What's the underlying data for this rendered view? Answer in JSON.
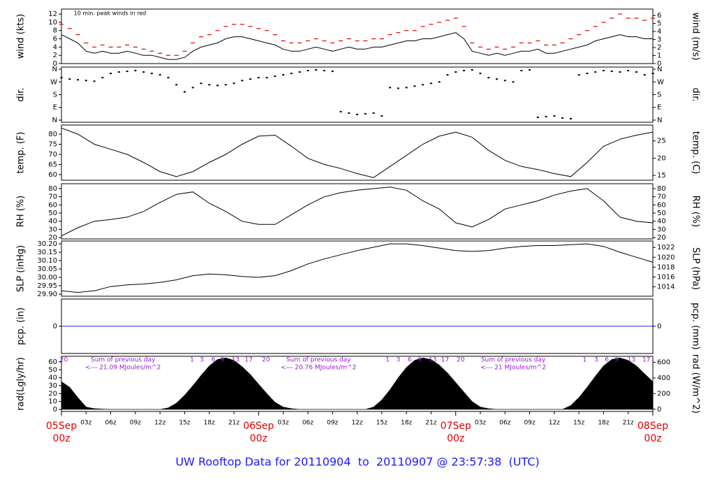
{
  "chart_data": [
    {
      "type": "line",
      "ylabel": "wind (kts)",
      "y2label": "wind (m/s)",
      "ylim": [
        0,
        13.2
      ],
      "yticks": [
        0,
        2,
        4,
        6,
        8,
        10,
        12
      ],
      "y2lim": [
        0,
        6.8
      ],
      "y2ticks": [
        0,
        1,
        2,
        3,
        4,
        5,
        6
      ],
      "annotations": [
        {
          "x": 1.5,
          "text": "10 min. peak winds in red",
          "color": "#e00000"
        }
      ],
      "x": [
        0,
        1,
        2,
        3,
        4,
        5,
        6,
        7,
        8,
        9,
        10,
        11,
        12,
        13,
        14,
        15,
        16,
        17,
        18,
        19,
        20,
        21,
        22,
        23,
        24,
        25,
        26,
        27,
        28,
        29,
        30,
        31,
        32,
        33,
        34,
        35,
        36,
        37,
        38,
        39,
        40,
        41,
        42,
        43,
        44,
        45,
        46,
        47,
        48,
        49,
        50,
        51,
        52,
        53,
        54,
        55,
        56,
        57,
        58,
        59,
        60,
        61,
        62,
        63,
        64,
        65,
        66,
        67,
        68,
        69,
        70,
        71,
        72
      ],
      "series": [
        {
          "color": "#000000",
          "marker": "line",
          "values": [
            7,
            6,
            5,
            3,
            2.5,
            3,
            2.5,
            2.5,
            3,
            2.5,
            2,
            2,
            1.5,
            1,
            1,
            1.5,
            3,
            4,
            4.5,
            5,
            6,
            6.5,
            6.5,
            6,
            5.5,
            5,
            4.5,
            3.5,
            3,
            3,
            3.5,
            4,
            3.5,
            3,
            3.5,
            4,
            3.5,
            3.5,
            4,
            4,
            4.5,
            5,
            5.5,
            5.5,
            6,
            6,
            6.5,
            7,
            7.5,
            6,
            3,
            2.5,
            2,
            2.5,
            2,
            2.5,
            3,
            3,
            3.5,
            2.5,
            2.5,
            3,
            3.5,
            4,
            4.5,
            5.5,
            6,
            6.5,
            7,
            6.5,
            6.5,
            6,
            6
          ]
        },
        {
          "color": "#e00000",
          "marker": "dash",
          "values": [
            9.5,
            8.5,
            7,
            5,
            4,
            4.5,
            4,
            4,
            4.5,
            4,
            3.5,
            3,
            2.5,
            2,
            2,
            3,
            5,
            6.5,
            7,
            8,
            9,
            9.5,
            9.5,
            9,
            8.5,
            8,
            7,
            5.5,
            5,
            5,
            5.5,
            6,
            5.5,
            5,
            5.5,
            6,
            5.5,
            5.5,
            6,
            6,
            7,
            7.5,
            8,
            8,
            9,
            9.5,
            10,
            10.5,
            11,
            9,
            5,
            4,
            3.5,
            4,
            3.5,
            4,
            5,
            5,
            5.5,
            4.5,
            4.5,
            5,
            6,
            7,
            8,
            9,
            10,
            11,
            12,
            11,
            11,
            10.5,
            11
          ]
        }
      ]
    },
    {
      "type": "scatter",
      "ylabel": "dir.",
      "y2label": "dir.",
      "ylim": [
        -15,
        375
      ],
      "yticks": [
        {
          "value": 360,
          "label": "N"
        },
        {
          "value": 270,
          "label": "W"
        },
        {
          "value": 180,
          "label": "S"
        },
        {
          "value": 90,
          "label": "E"
        },
        {
          "value": 0,
          "label": "N"
        }
      ],
      "y2lim": [
        -15,
        375
      ],
      "y2ticks": [
        {
          "value": 360,
          "label": "N"
        },
        {
          "value": 270,
          "label": "W"
        },
        {
          "value": 180,
          "label": "S"
        },
        {
          "value": 90,
          "label": "E"
        },
        {
          "value": 0,
          "label": "N"
        }
      ],
      "x": [
        0,
        1,
        2,
        3,
        4,
        5,
        6,
        7,
        8,
        9,
        10,
        11,
        12,
        13,
        14,
        15,
        16,
        17,
        18,
        19,
        20,
        21,
        22,
        23,
        24,
        25,
        26,
        27,
        28,
        29,
        30,
        31,
        32,
        33,
        34,
        35,
        36,
        37,
        38,
        39,
        40,
        41,
        42,
        43,
        44,
        45,
        46,
        47,
        48,
        49,
        50,
        51,
        52,
        53,
        54,
        55,
        56,
        57,
        58,
        59,
        60,
        61,
        62,
        63,
        64,
        65,
        66,
        67,
        68,
        69,
        70,
        71,
        72
      ],
      "series": [
        {
          "color": "#000000",
          "values": [
            300,
            290,
            285,
            280,
            275,
            300,
            330,
            340,
            345,
            350,
            340,
            330,
            320,
            300,
            250,
            200,
            230,
            260,
            250,
            245,
            250,
            260,
            280,
            290,
            300,
            300,
            310,
            320,
            330,
            340,
            350,
            355,
            350,
            345,
            60,
            50,
            40,
            45,
            50,
            30,
            230,
            225,
            230,
            240,
            250,
            260,
            270,
            320,
            340,
            350,
            355,
            330,
            300,
            290,
            280,
            270,
            350,
            355,
            20,
            25,
            30,
            15,
            10,
            320,
            330,
            340,
            350,
            345,
            340,
            350,
            340,
            320,
            330
          ]
        }
      ]
    },
    {
      "type": "line",
      "ylabel": "temp. (F)",
      "y2label": "temp. (C)",
      "ylim": [
        57.2,
        84.5
      ],
      "yticks": [
        60,
        65,
        70,
        75,
        80
      ],
      "y2lim": [
        13.6,
        29.6
      ],
      "y2ticks": [
        15,
        20,
        25
      ],
      "x": [
        0,
        2,
        4,
        6,
        8,
        10,
        12,
        14,
        16,
        18,
        20,
        22,
        24,
        26,
        28,
        30,
        32,
        34,
        36,
        38,
        40,
        42,
        44,
        46,
        48,
        50,
        52,
        54,
        56,
        58,
        60,
        62,
        64,
        66,
        68,
        70,
        72
      ],
      "series": [
        {
          "color": "#000000",
          "marker": "line",
          "values": [
            83,
            80,
            75,
            72.5,
            70,
            66,
            61.5,
            59,
            61.5,
            66,
            70,
            75,
            79,
            79.5,
            74,
            68,
            65,
            63,
            60.5,
            58.5,
            64,
            69.5,
            75,
            79,
            81,
            78.5,
            72,
            67,
            64,
            62.5,
            60.5,
            59,
            66,
            74,
            77.5,
            79.5,
            81
          ]
        }
      ]
    },
    {
      "type": "line",
      "ylabel": "RH (%)",
      "y2label": "RH (%)",
      "ylim": [
        18.3,
        86
      ],
      "yticks": [
        20,
        30,
        40,
        50,
        60,
        70,
        80
      ],
      "y2lim": [
        18.3,
        86
      ],
      "y2ticks": [
        20,
        30,
        40,
        50,
        60,
        70,
        80
      ],
      "x": [
        0,
        2,
        4,
        6,
        8,
        10,
        12,
        14,
        16,
        18,
        20,
        22,
        24,
        26,
        28,
        30,
        32,
        34,
        36,
        38,
        40,
        42,
        44,
        46,
        48,
        50,
        52,
        54,
        56,
        58,
        60,
        62,
        64,
        66,
        68,
        70,
        72
      ],
      "series": [
        {
          "color": "#000000",
          "marker": "line",
          "values": [
            22,
            32,
            40,
            42,
            45,
            52,
            63,
            73,
            76,
            62,
            52,
            40,
            36,
            36,
            48,
            60,
            70,
            75,
            78,
            80,
            82,
            78,
            65,
            55,
            38,
            33,
            42,
            55,
            60,
            65,
            72,
            77,
            80,
            65,
            45,
            40,
            38
          ]
        }
      ]
    },
    {
      "type": "line",
      "ylabel": "SLP (inHg)",
      "y2label": "SLP (hPa)",
      "ylim": [
        29.8875,
        30.217
      ],
      "yticks": [
        {
          "value": 30.2,
          "label": "30.20"
        },
        30.15,
        {
          "value": 30.1,
          "label": "30.10"
        },
        30.05,
        {
          "value": 30,
          "label": "30.00"
        },
        29.95,
        {
          "value": 29.9,
          "label": "29.90"
        }
      ],
      "y2lim": [
        1012.1,
        1023.3
      ],
      "y2ticks": [
        1014,
        1016,
        1018,
        1020,
        1022
      ],
      "x": [
        0,
        2,
        4,
        6,
        8,
        10,
        12,
        14,
        16,
        18,
        20,
        22,
        24,
        26,
        28,
        30,
        32,
        34,
        36,
        38,
        40,
        42,
        44,
        46,
        48,
        50,
        52,
        54,
        56,
        58,
        60,
        62,
        64,
        66,
        68,
        70,
        72
      ],
      "series": [
        {
          "color": "#000000",
          "marker": "line",
          "values": [
            29.92,
            29.91,
            29.92,
            29.945,
            29.955,
            29.96,
            29.97,
            29.985,
            30.01,
            30.02,
            30.015,
            30.005,
            30,
            30.01,
            30.04,
            30.08,
            30.11,
            30.135,
            30.16,
            30.18,
            30.2,
            30.2,
            30.19,
            30.175,
            30.16,
            30.155,
            30.16,
            30.175,
            30.185,
            30.19,
            30.19,
            30.195,
            30.2,
            30.185,
            30.15,
            30.12,
            30.09
          ]
        }
      ]
    },
    {
      "type": "line",
      "ylabel": "pcp. (in)",
      "y2label": "pcp. (mm)",
      "ylim": [
        -0.5,
        0.5
      ],
      "yticks": [
        0
      ],
      "y2lim": [
        -0.5,
        0.5
      ],
      "y2ticks": [
        0
      ],
      "x": [
        0,
        72
      ],
      "series": [
        {
          "color": "#2020d0",
          "marker": "line",
          "values": [
            0,
            0
          ]
        }
      ]
    },
    {
      "type": "area",
      "ylabel": "rad(Lgly/hr)",
      "y2label": "rad (W/m^2)",
      "ylim": [
        -2.6,
        67
      ],
      "yticks": [
        0,
        10,
        20,
        30,
        40,
        50,
        60
      ],
      "y2lim": [
        -29,
        677
      ],
      "y2ticks": [
        0,
        200,
        400,
        600
      ],
      "hour_ticks": [
        {
          "value": 0.3,
          "label": "20"
        },
        {
          "value": 15.9,
          "label": "1"
        },
        {
          "value": 17.1,
          "label": "3"
        },
        {
          "value": 18.5,
          "label": "6"
        },
        {
          "value": 19.6,
          "label": "9"
        },
        {
          "value": 21.2,
          "label": "13"
        },
        {
          "value": 22.8,
          "label": "17"
        },
        {
          "value": 24.9,
          "label": "20"
        },
        {
          "value": 39.7,
          "label": "1"
        },
        {
          "value": 41,
          "label": "3"
        },
        {
          "value": 42.4,
          "label": "6"
        },
        {
          "value": 43.6,
          "label": "9"
        },
        {
          "value": 45.2,
          "label": "13"
        },
        {
          "value": 46.7,
          "label": "17"
        },
        {
          "value": 48.6,
          "label": "20"
        },
        {
          "value": 63.7,
          "label": "1"
        },
        {
          "value": 65.1,
          "label": "3"
        },
        {
          "value": 66.4,
          "label": "6"
        },
        {
          "value": 67.6,
          "label": "9"
        },
        {
          "value": 69.4,
          "label": "13"
        },
        {
          "value": 71.2,
          "label": "17"
        }
      ],
      "notes": [
        {
          "x": 7.5,
          "lines": [
            "Sum of previous day",
            "<--- 21.09 MJoules/m^2"
          ]
        },
        {
          "x": 31.3,
          "lines": [
            "Sum of previous day",
            "<--- 20.76 MJoules/m^2"
          ]
        },
        {
          "x": 55,
          "lines": [
            "Sum of previous day",
            "<--- 21 MJoules/m^2"
          ]
        }
      ],
      "x": [
        0,
        1,
        2,
        3,
        4,
        5,
        6,
        7,
        8,
        9,
        10,
        11,
        12,
        13,
        14,
        15,
        16,
        17,
        18,
        19,
        20,
        21,
        22,
        23,
        24,
        25,
        26,
        27,
        28,
        29,
        30,
        31,
        32,
        33,
        34,
        35,
        36,
        37,
        38,
        39,
        40,
        41,
        42,
        43,
        44,
        45,
        46,
        47,
        48,
        49,
        50,
        51,
        52,
        53,
        54,
        55,
        56,
        57,
        58,
        59,
        60,
        61,
        62,
        63,
        64,
        65,
        66,
        67,
        68,
        69,
        70,
        71,
        72
      ],
      "series": [
        {
          "color": "#000000",
          "values": [
            35,
            28,
            15,
            3,
            1,
            0.5,
            0,
            0,
            0,
            0,
            0,
            0,
            0,
            2,
            8,
            18,
            30,
            43,
            55,
            63,
            65,
            62,
            54,
            44,
            32,
            20,
            9,
            3,
            1,
            0,
            0,
            0,
            0,
            0,
            0,
            0,
            0,
            0,
            3,
            12,
            25,
            40,
            53,
            62,
            65,
            63,
            56,
            46,
            34,
            22,
            10,
            3,
            1,
            0,
            0,
            0,
            0,
            0,
            0,
            0,
            0,
            0,
            5,
            15,
            28,
            42,
            55,
            63,
            65,
            62,
            55,
            45,
            35
          ]
        }
      ]
    }
  ],
  "x_axis": {
    "xlim": [
      0,
      72
    ],
    "xticks": [
      {
        "value": 3,
        "label": "03z"
      },
      {
        "value": 6,
        "label": "06z"
      },
      {
        "value": 9,
        "label": "09z"
      },
      {
        "value": 12,
        "label": "12z"
      },
      {
        "value": 15,
        "label": "15z"
      },
      {
        "value": 18,
        "label": "18z"
      },
      {
        "value": 21,
        "label": "21z"
      },
      {
        "value": 27,
        "label": "03z"
      },
      {
        "value": 30,
        "label": "06z"
      },
      {
        "value": 33,
        "label": "09z"
      },
      {
        "value": 36,
        "label": "12z"
      },
      {
        "value": 39,
        "label": "15z"
      },
      {
        "value": 42,
        "label": "18z"
      },
      {
        "value": 45,
        "label": "21z"
      },
      {
        "value": 51,
        "label": "03z"
      },
      {
        "value": 54,
        "label": "06z"
      },
      {
        "value": 57,
        "label": "09z"
      },
      {
        "value": 60,
        "label": "12z"
      },
      {
        "value": 63,
        "label": "15z"
      },
      {
        "value": 66,
        "label": "18z"
      },
      {
        "value": 69,
        "label": "21z"
      }
    ],
    "day_ticks": [
      {
        "value": 0,
        "label": "05Sep"
      },
      {
        "value": 24,
        "label": "06Sep"
      },
      {
        "value": 48,
        "label": "07Sep"
      },
      {
        "value": 72,
        "label": "08Sep"
      }
    ],
    "day_tick_time": "00z"
  },
  "footer": "UW Rooftop Data for 20110904  to  20110907 @ 23:57:38  (UTC)"
}
